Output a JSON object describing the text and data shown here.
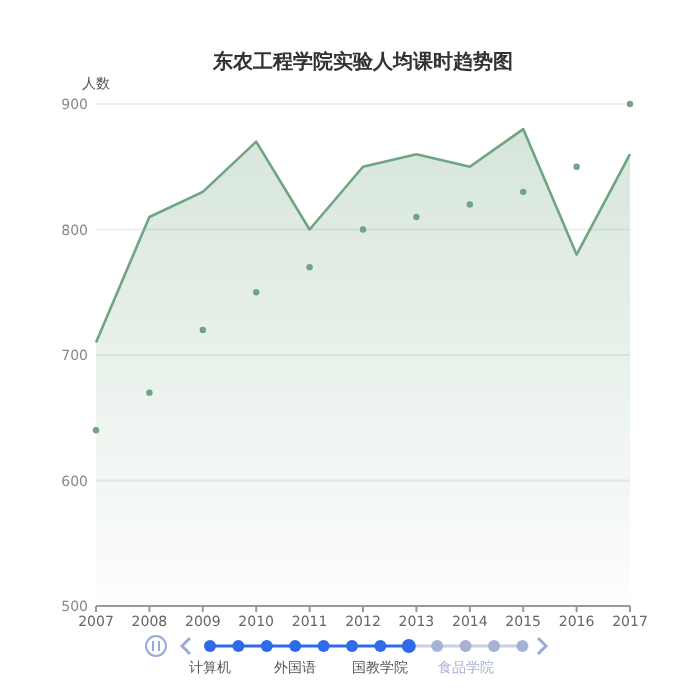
{
  "chart_data": {
    "type": "area",
    "title": "东农工程学院实验人均课时趋势图",
    "ylabel": "人数",
    "x": [
      2007,
      2008,
      2009,
      2010,
      2011,
      2012,
      2013,
      2014,
      2015,
      2016,
      2017
    ],
    "series": [
      {
        "color": "#6fa580",
        "values": [
          710,
          810,
          830,
          870,
          800,
          850,
          860,
          850,
          880,
          780,
          860
        ]
      },
      {
        "type": "scatter",
        "marker": "circle",
        "color": "#6fa580",
        "values": [
          640,
          670,
          720,
          750,
          770,
          800,
          810,
          820,
          830,
          850,
          900
        ]
      }
    ],
    "xlim": [
      2007,
      2017
    ],
    "xticks": [
      2007,
      2008,
      2009,
      2010,
      2011,
      2012,
      2013,
      2014,
      2015,
      2016,
      2017
    ],
    "ylim": [
      500,
      900
    ],
    "yticks": [
      500,
      600,
      700,
      800,
      900
    ],
    "grid": "y",
    "annotations": [
      "计算机",
      "外国语",
      "国教学院",
      "食品学院"
    ]
  }
}
